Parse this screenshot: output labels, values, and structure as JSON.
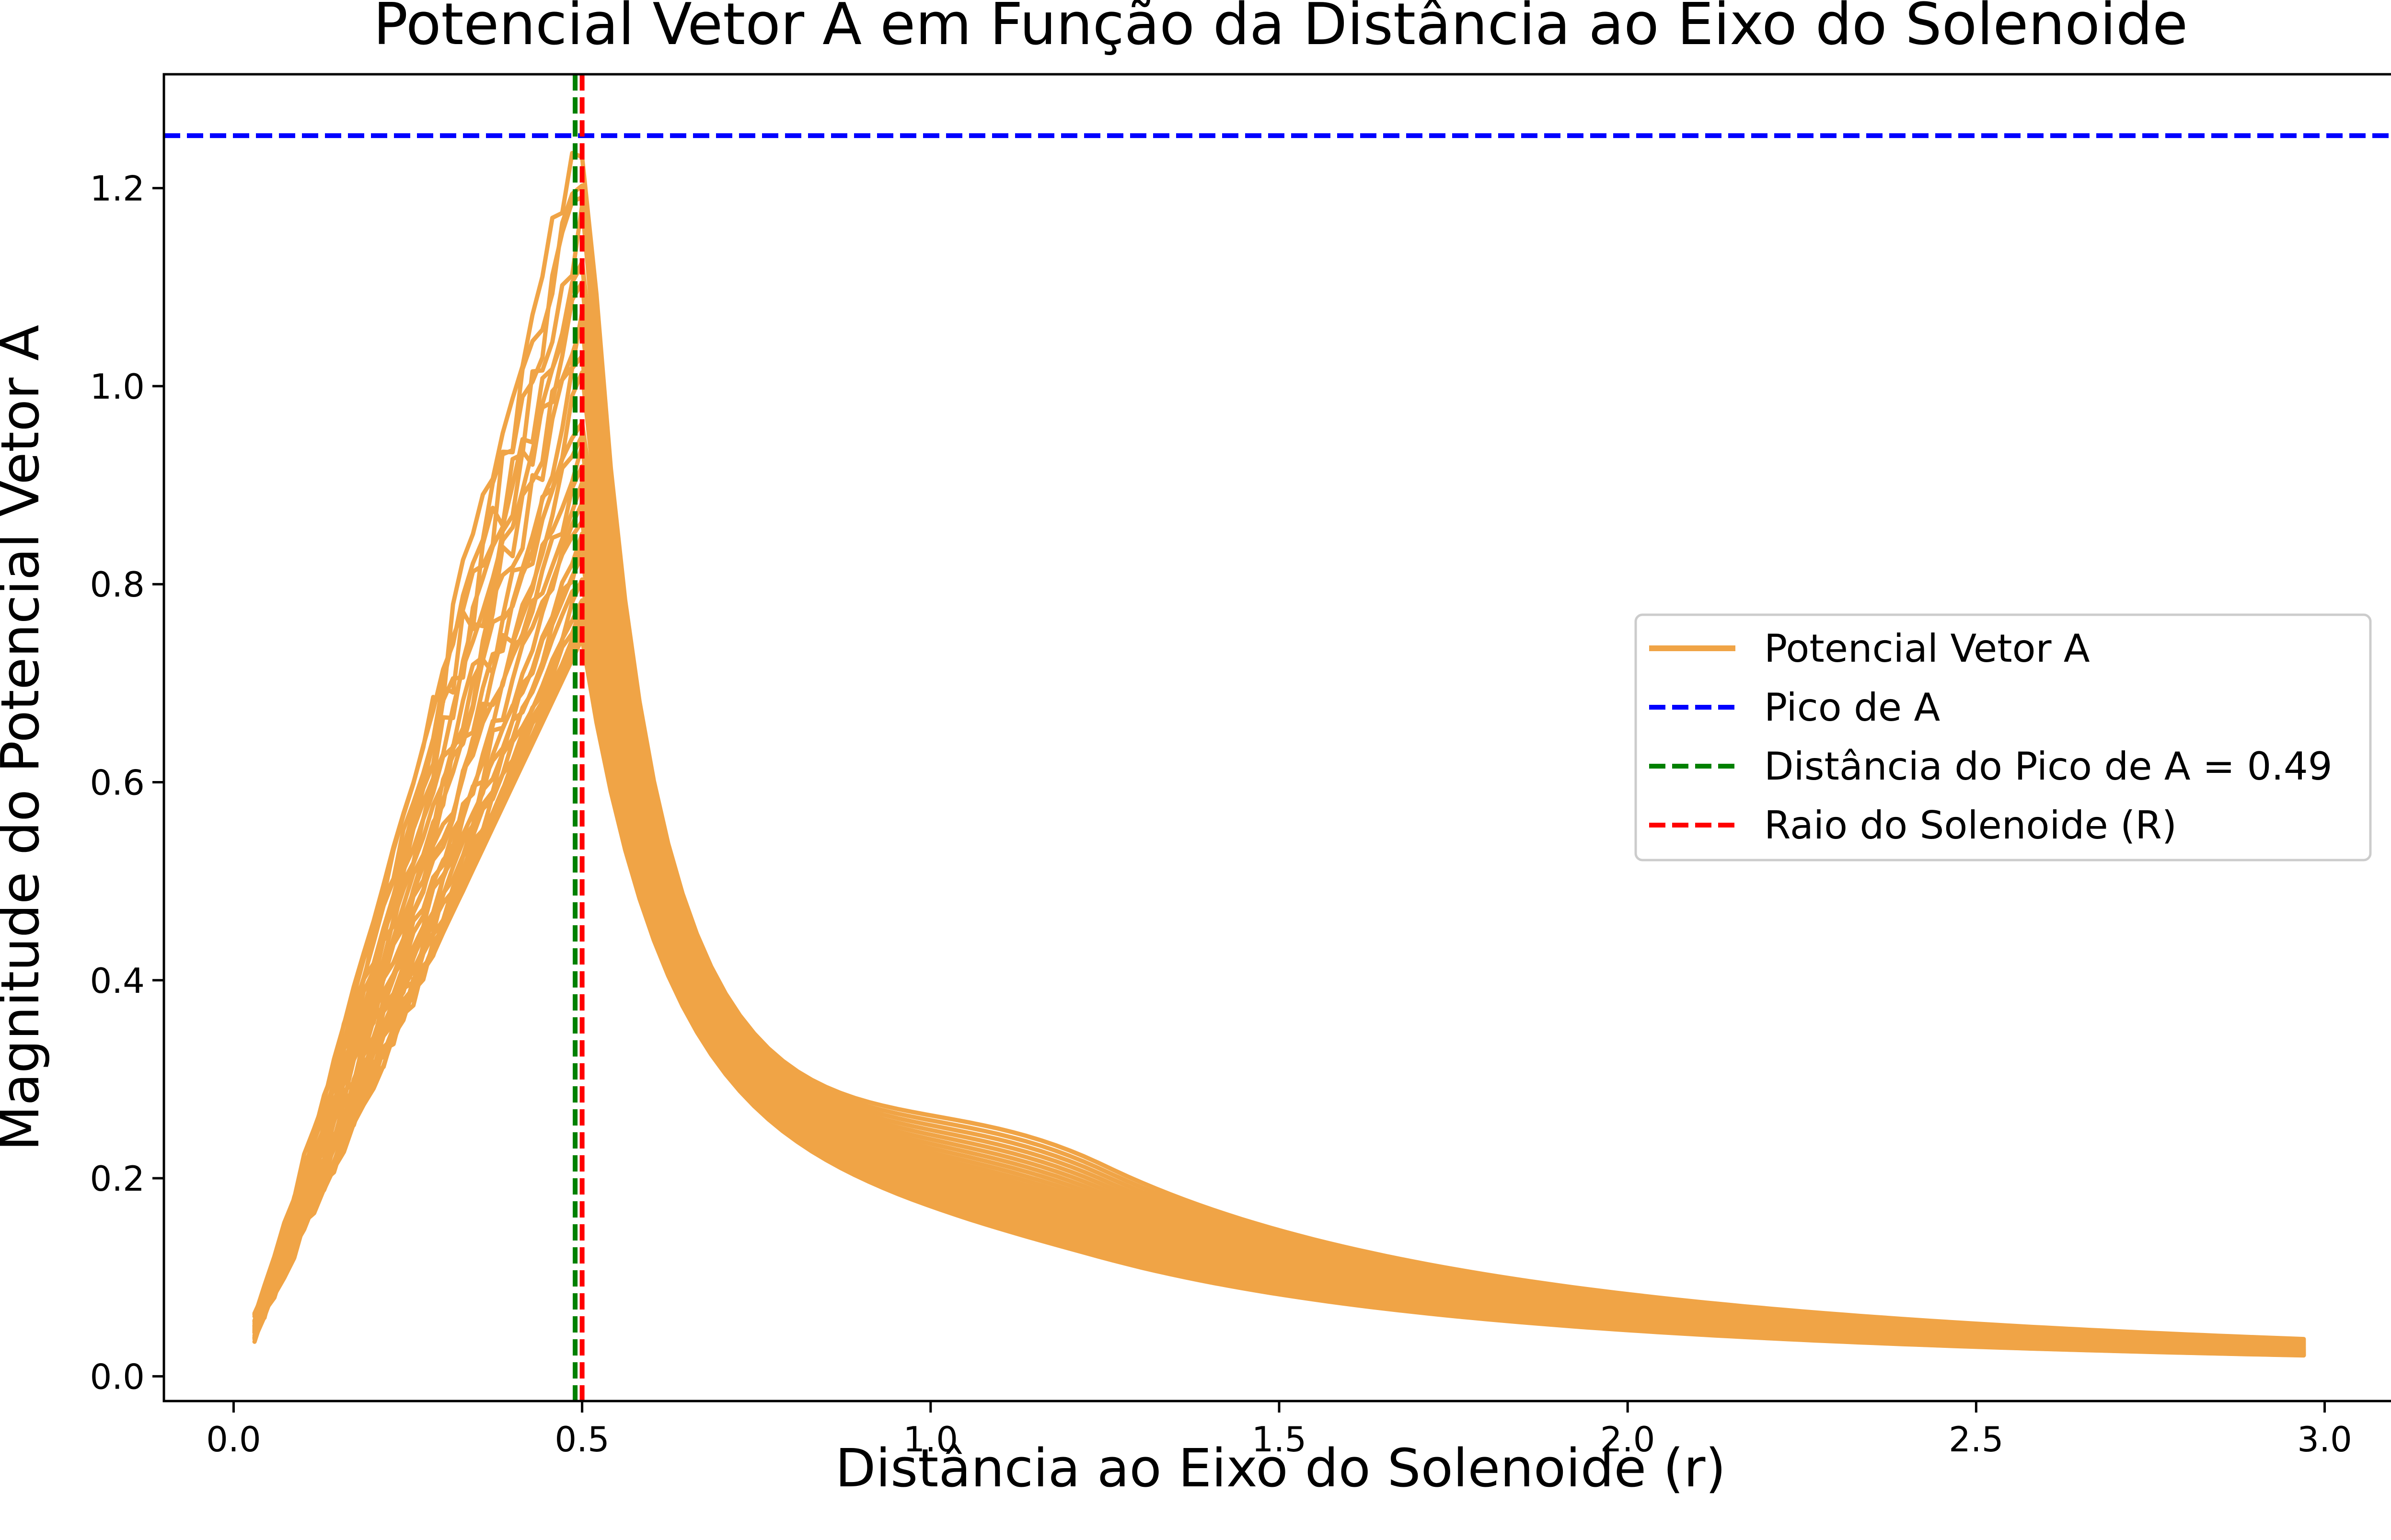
{
  "chart_data": {
    "type": "line",
    "title": "Potencial Vetor A em Função da Distância ao Eixo do Solenoide",
    "xlabel": "Distância ao Eixo do Solenoide (r)",
    "ylabel": "Magnitude do Potencial Vetor A",
    "xlim": [
      -0.1,
      3.1
    ],
    "ylim": [
      -0.025,
      1.315
    ],
    "xticks": [
      "0.0",
      "0.5",
      "1.0",
      "1.5",
      "2.0",
      "2.5",
      "3.0"
    ],
    "yticks": [
      "0.0",
      "0.2",
      "0.4",
      "0.6",
      "0.8",
      "1.0",
      "1.2"
    ],
    "grid": false,
    "legend_position": "center-right",
    "colors": {
      "potential": "#F0A446",
      "peak": "#0000FF",
      "peak_distance": "#008000",
      "radius": "#FF0000"
    },
    "solenoid_radius": 0.5,
    "peak_value": 1.253,
    "peak_distance": 0.49,
    "series": [
      {
        "name": "Potencial Vetor A",
        "kind": "band",
        "x_range": [
          0.03,
          2.97
        ]
      },
      {
        "name": "Pico de A",
        "kind": "hline",
        "y": 1.253
      },
      {
        "name": "Distância do Pico de A = 0.49",
        "kind": "vline",
        "x": 0.49
      },
      {
        "name": "Raio do Solenoide (R)",
        "kind": "vline",
        "x": 0.5
      }
    ]
  }
}
